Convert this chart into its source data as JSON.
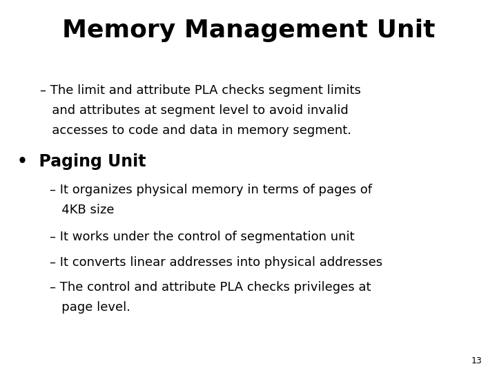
{
  "title": "Memory Management Unit",
  "background_color": "#ffffff",
  "text_color": "#000000",
  "title_fontsize": 26,
  "title_fontweight": "bold",
  "body_fontsize": 13,
  "bullet_fontsize": 17,
  "page_number": "13",
  "line1": "– The limit and attribute PLA checks segment limits",
  "line2": "   and attributes at segment level to avoid invalid",
  "line3": "   accesses to code and data in memory segment.",
  "bullet_label": "•  Paging Unit",
  "sub1_line1": "– It organizes physical memory in terms of pages of",
  "sub1_line2": "   4KB size",
  "sub2": "– It works under the control of segmentation unit",
  "sub3": "– It converts linear addresses into physical addresses",
  "sub4_line1": "– The control and attribute PLA checks privileges at",
  "sub4_line2": "   page level."
}
